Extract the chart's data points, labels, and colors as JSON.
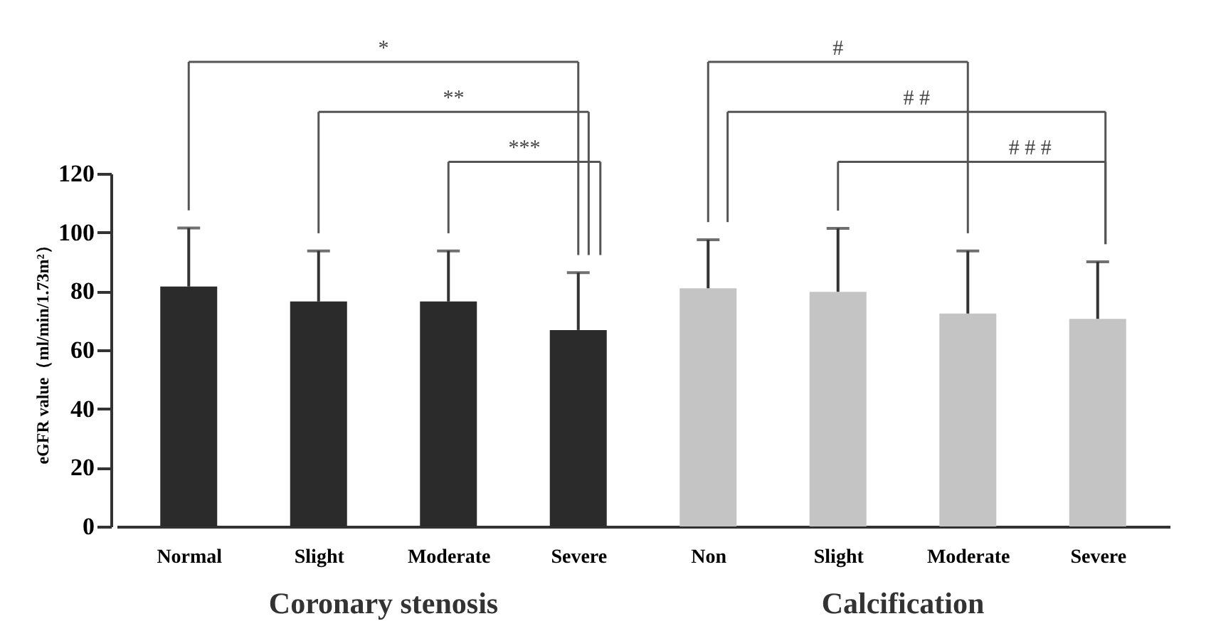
{
  "chart_data": {
    "type": "bar",
    "ylabel": "eGFR value（ml/min/1.73m²）",
    "categories": [
      "Normal",
      "Slight",
      "Moderate",
      "Severe",
      "Non",
      "Slight",
      "Moderate",
      "Severe"
    ],
    "values": [
      81.6,
      76.5,
      76.5,
      66.8,
      81,
      79.8,
      72.4,
      70.6
    ],
    "errors": [
      [
        81.6,
        101.5
      ],
      [
        76.5,
        93.7
      ],
      [
        76.5,
        93.7
      ],
      [
        66.8,
        86.3
      ],
      [
        81,
        97.5
      ],
      [
        79.8,
        101.4
      ],
      [
        72.4,
        93.7
      ],
      [
        70.6,
        90
      ]
    ],
    "colors": [
      "#2b2b2b",
      "#2b2b2b",
      "#2b2b2b",
      "#2b2b2b",
      "#c4c4c4",
      "#c4c4c4",
      "#c4c4c4",
      "#c4c4c4"
    ],
    "ylim": [
      0,
      120
    ],
    "yticks": [
      0,
      20,
      40,
      60,
      80,
      100,
      120
    ],
    "grid": false,
    "annotations": [
      "*",
      "**",
      "***",
      "#",
      "# #",
      "# # #",
      "Coronary stenosis",
      "Calcification"
    ]
  }
}
